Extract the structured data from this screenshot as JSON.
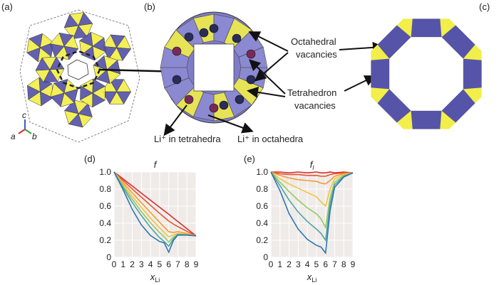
{
  "panels": {
    "a": "(a)",
    "b": "(b)",
    "c": "(c)",
    "d": "(d)",
    "e": "(e)"
  },
  "axes_triad": {
    "c": "c",
    "a": "a",
    "b": "b"
  },
  "annotations": {
    "octa_line1": "Octahedral",
    "octa_line2": "vacancies",
    "tetra_line1": "Tetrahedron",
    "tetra_line2": "vacancies",
    "li_tetra": "Li⁺ in tetrahedra",
    "li_octa": "Li⁺ in octahedra"
  },
  "colors": {
    "tetra_yellow": "#f2ee4a",
    "octa_blue": "#5654a8",
    "grid_bg": "#efebe8"
  },
  "chart_data": [
    {
      "type": "line",
      "title": "f",
      "xlabel": "x_Li",
      "ylabel": "",
      "xlim": [
        0,
        9
      ],
      "ylim": [
        0,
        1.0
      ],
      "xticks": [
        "0",
        "1",
        "2",
        "3",
        "4",
        "5",
        "6",
        "7",
        "8",
        "9"
      ],
      "yticks": [
        "0",
        "0.2",
        "0.4",
        "0.6",
        "0.8",
        "1.0"
      ],
      "x": [
        0,
        1,
        2,
        3,
        4,
        5,
        5.5,
        6,
        6.5,
        7,
        8,
        9
      ],
      "series": [
        {
          "color": "#d62f2f",
          "values": [
            1.0,
            0.918,
            0.835,
            0.752,
            0.669,
            0.587,
            0.546,
            0.505,
            0.462,
            0.42,
            0.335,
            0.252
          ]
        },
        {
          "color": "#e8542f",
          "values": [
            1.0,
            0.9,
            0.8,
            0.705,
            0.61,
            0.515,
            0.47,
            0.425,
            0.39,
            0.36,
            0.305,
            0.252
          ]
        },
        {
          "color": "#f39a3a",
          "values": [
            1.0,
            0.875,
            0.755,
            0.64,
            0.525,
            0.41,
            0.355,
            0.3,
            0.29,
            0.3,
            0.28,
            0.252
          ]
        },
        {
          "color": "#f5c342",
          "values": [
            1.0,
            0.855,
            0.715,
            0.585,
            0.46,
            0.345,
            0.29,
            0.24,
            0.26,
            0.28,
            0.27,
            0.252
          ]
        },
        {
          "color": "#94c963",
          "values": [
            1.0,
            0.835,
            0.68,
            0.535,
            0.405,
            0.29,
            0.24,
            0.18,
            0.235,
            0.27,
            0.265,
            0.252
          ]
        },
        {
          "color": "#4aa6a0",
          "values": [
            1.0,
            0.815,
            0.64,
            0.49,
            0.35,
            0.23,
            0.185,
            0.13,
            0.215,
            0.265,
            0.262,
            0.252
          ]
        },
        {
          "color": "#2f75b5",
          "values": [
            1.0,
            0.79,
            0.56,
            0.38,
            0.255,
            0.185,
            0.17,
            0.06,
            0.195,
            0.26,
            0.26,
            0.252
          ]
        }
      ]
    },
    {
      "type": "line",
      "title": "f_l",
      "xlabel": "x_Li",
      "ylabel": "",
      "xlim": [
        0,
        9
      ],
      "ylim": [
        0,
        1.0
      ],
      "xticks": [
        "0",
        "1",
        "2",
        "3",
        "4",
        "5",
        "6",
        "7",
        "8",
        "9"
      ],
      "yticks": [
        "0",
        "0.2",
        "0.4",
        "0.6",
        "0.8",
        "1.0"
      ],
      "x": [
        0,
        1,
        2,
        3,
        4,
        5,
        5.5,
        6,
        6.5,
        7,
        8,
        9
      ],
      "series": [
        {
          "color": "#d62f2f",
          "values": [
            1.0,
            1.0,
            0.99,
            1.0,
            0.99,
            1.0,
            0.99,
            0.99,
            1.0,
            0.99,
            1.0,
            0.99
          ]
        },
        {
          "color": "#e8542f",
          "values": [
            1.0,
            0.98,
            0.97,
            0.97,
            0.96,
            0.96,
            0.95,
            0.95,
            0.97,
            0.98,
            0.99,
            0.99
          ]
        },
        {
          "color": "#f39a3a",
          "values": [
            1.0,
            0.96,
            0.93,
            0.91,
            0.9,
            0.89,
            0.87,
            0.86,
            0.9,
            0.95,
            0.98,
            0.99
          ]
        },
        {
          "color": "#f5c342",
          "values": [
            1.0,
            0.92,
            0.86,
            0.81,
            0.76,
            0.71,
            0.65,
            0.6,
            0.8,
            0.92,
            0.97,
            0.99
          ]
        },
        {
          "color": "#94c963",
          "values": [
            1.0,
            0.88,
            0.77,
            0.67,
            0.58,
            0.51,
            0.45,
            0.35,
            0.7,
            0.88,
            0.96,
            0.99
          ]
        },
        {
          "color": "#4aa6a0",
          "values": [
            1.0,
            0.84,
            0.67,
            0.53,
            0.42,
            0.33,
            0.28,
            0.2,
            0.63,
            0.85,
            0.95,
            0.99
          ]
        },
        {
          "color": "#2f75b5",
          "values": [
            1.0,
            0.78,
            0.51,
            0.33,
            0.21,
            0.14,
            0.12,
            0.05,
            0.55,
            0.82,
            0.94,
            0.99
          ]
        }
      ]
    }
  ]
}
